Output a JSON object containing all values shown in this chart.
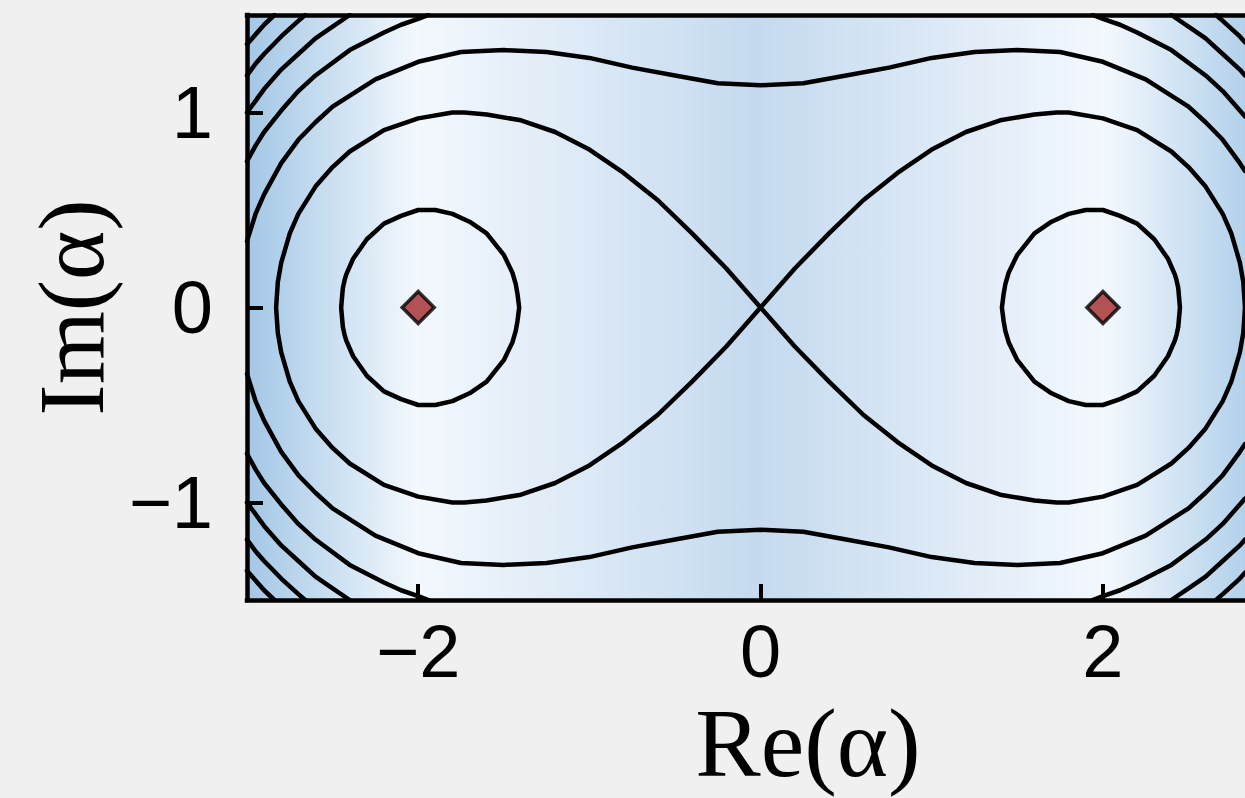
{
  "chart_data": {
    "type": "line",
    "xlabel": "Re(α)",
    "ylabel": "Im(α)",
    "xlim": [
      -3,
      2.83
    ],
    "ylim": [
      -1.5,
      1.5
    ],
    "xticks": [
      {
        "value": -2,
        "label": "−2"
      },
      0,
      2
    ],
    "yticks": [
      {
        "value": -1,
        "label": "−1"
      },
      0,
      1
    ],
    "marker": "none",
    "line_style": "solid",
    "series": [
      {
        "color": "#000000",
        "x": [
          -2.45,
          -2.44,
          -2.43,
          -2.42,
          -2.38,
          -2.3,
          -2.2,
          -2.1,
          -2.0,
          -1.9,
          -1.8,
          -1.7,
          -1.6,
          -1.5,
          -1.45,
          -1.43,
          -1.42,
          -1.41,
          -1.42,
          -1.43,
          -1.45,
          -1.5,
          -1.6,
          -1.7,
          -1.8,
          -1.9,
          -2.0,
          -2.1,
          -2.2,
          -2.3,
          -2.38,
          -2.42,
          -2.43,
          -2.44,
          -2.45,
          -2.44
        ],
        "values": [
          0,
          0.1,
          0.14,
          0.17,
          0.25,
          0.35,
          0.43,
          0.47,
          0.5,
          0.5,
          0.48,
          0.44,
          0.38,
          0.27,
          0.18,
          0.12,
          0.07,
          0,
          -0.07,
          -0.12,
          -0.18,
          -0.27,
          -0.38,
          -0.44,
          -0.48,
          -0.5,
          -0.5,
          -0.47,
          -0.43,
          -0.35,
          -0.25,
          -0.17,
          -0.14,
          -0.1,
          0,
          0.1
        ]
      },
      {
        "color": "#000000",
        "x": [
          2.45,
          2.44,
          2.43,
          2.42,
          2.38,
          2.3,
          2.2,
          2.1,
          2.0,
          1.9,
          1.8,
          1.7,
          1.6,
          1.5,
          1.45,
          1.43,
          1.42,
          1.41,
          1.42,
          1.43,
          1.45,
          1.5,
          1.6,
          1.7,
          1.8,
          1.9,
          2.0,
          2.1,
          2.2,
          2.3,
          2.38,
          2.42,
          2.43,
          2.44,
          2.45,
          2.44
        ],
        "values": [
          0,
          0.1,
          0.14,
          0.17,
          0.25,
          0.35,
          0.43,
          0.47,
          0.5,
          0.5,
          0.48,
          0.44,
          0.38,
          0.27,
          0.18,
          0.12,
          0.07,
          0,
          -0.07,
          -0.12,
          -0.18,
          -0.27,
          -0.38,
          -0.44,
          -0.48,
          -0.5,
          -0.5,
          -0.47,
          -0.43,
          -0.35,
          -0.25,
          -0.17,
          -0.14,
          -0.1,
          0,
          0.1
        ]
      },
      {
        "color": "#000000",
        "x": [
          0,
          0.1,
          0.2,
          0.4,
          0.6,
          0.8,
          1.0,
          1.2,
          1.4,
          1.6,
          1.73,
          1.8,
          2.0,
          2.2,
          2.4,
          2.5,
          2.6,
          2.7,
          2.75,
          2.8,
          2.82,
          2.83,
          2.82,
          2.8,
          2.75,
          2.7,
          2.6,
          2.5,
          2.4,
          2.2,
          2.0,
          1.8,
          1.73,
          1.6,
          1.4,
          1.2,
          1.0,
          0.8,
          0.6,
          0.4,
          0.2,
          0.1,
          0,
          -0.1,
          -0.2,
          -0.4,
          -0.6,
          -0.8,
          -1.0,
          -1.2,
          -1.4,
          -1.6,
          -1.73,
          -1.8,
          -2.0,
          -2.2,
          -2.4,
          -2.5,
          -2.6,
          -2.7,
          -2.75,
          -2.8,
          -2.82,
          -2.83,
          -2.82,
          -2.8,
          -2.75,
          -2.7,
          -2.6,
          -2.5,
          -2.4,
          -2.2,
          -2.0,
          -1.8,
          -1.73,
          -1.6,
          -1.4,
          -1.2,
          -1.0,
          -0.8,
          -0.6,
          -0.4,
          -0.2,
          -0.1,
          0,
          0.1
        ],
        "values": [
          0,
          0.1,
          0.2,
          0.38,
          0.55,
          0.69,
          0.81,
          0.9,
          0.96,
          0.99,
          1.0,
          1.0,
          0.97,
          0.91,
          0.8,
          0.72,
          0.62,
          0.48,
          0.38,
          0.23,
          0.13,
          0,
          -0.13,
          -0.23,
          -0.38,
          -0.48,
          -0.62,
          -0.72,
          -0.8,
          -0.91,
          -0.97,
          -1.0,
          -1.0,
          -0.99,
          -0.96,
          -0.9,
          -0.81,
          -0.69,
          -0.55,
          -0.38,
          -0.2,
          -0.1,
          0,
          0.1,
          0.2,
          0.38,
          0.55,
          0.69,
          0.81,
          0.9,
          0.96,
          0.99,
          1.0,
          1.0,
          0.97,
          0.91,
          0.8,
          0.72,
          0.62,
          0.48,
          0.38,
          0.23,
          0.13,
          0,
          -0.13,
          -0.23,
          -0.38,
          -0.48,
          -0.62,
          -0.72,
          -0.8,
          -0.91,
          -0.97,
          -1.0,
          -1.0,
          -0.99,
          -0.96,
          -0.9,
          -0.81,
          -0.69,
          -0.55,
          -0.38,
          -0.2,
          -0.1,
          0,
          0.1
        ]
      },
      {
        "color": "#000000",
        "x": [
          -3,
          -2.95,
          -2.9,
          -2.8,
          -2.7,
          -2.6,
          -2.5,
          -2.25,
          -2.0,
          -1.75,
          -1.5,
          -1.25,
          -1.0,
          -0.75,
          -0.5,
          -0.25,
          0,
          0.25,
          0.5,
          0.75,
          1.0,
          1.25,
          1.5,
          1.75,
          2.0,
          2.25,
          2.5,
          2.6,
          2.7,
          2.8,
          2.83
        ],
        "values": [
          0.34,
          0.48,
          0.58,
          0.74,
          0.86,
          0.95,
          1.03,
          1.17,
          1.26,
          1.31,
          1.32,
          1.31,
          1.28,
          1.23,
          1.19,
          1.15,
          1.14,
          1.15,
          1.19,
          1.23,
          1.28,
          1.31,
          1.32,
          1.31,
          1.26,
          1.17,
          1.03,
          0.95,
          0.86,
          0.74,
          0.7
        ]
      },
      {
        "color": "#000000",
        "x": [
          -3,
          -2.95,
          -2.9,
          -2.8,
          -2.7,
          -2.6,
          -2.5,
          -2.25,
          -2.0,
          -1.75,
          -1.5,
          -1.25,
          -1.0,
          -0.75,
          -0.5,
          -0.25,
          0,
          0.25,
          0.5,
          0.75,
          1.0,
          1.25,
          1.5,
          1.75,
          2.0,
          2.25,
          2.5,
          2.6,
          2.7,
          2.8,
          2.83
        ],
        "values": [
          -0.34,
          -0.48,
          -0.58,
          -0.74,
          -0.86,
          -0.95,
          -1.03,
          -1.17,
          -1.26,
          -1.31,
          -1.32,
          -1.31,
          -1.28,
          -1.23,
          -1.19,
          -1.15,
          -1.14,
          -1.15,
          -1.19,
          -1.23,
          -1.28,
          -1.31,
          -1.32,
          -1.31,
          -1.26,
          -1.17,
          -1.03,
          -0.95,
          -0.86,
          -0.74,
          -0.7
        ]
      },
      {
        "color": "#000000",
        "x": [
          -3,
          -2.95,
          -2.9,
          -2.8,
          -2.7,
          -2.6,
          -2.4,
          -2.2,
          -2.1,
          -2.0,
          -1.94
        ],
        "values": [
          0.75,
          0.83,
          0.9,
          1.01,
          1.11,
          1.19,
          1.32,
          1.41,
          1.45,
          1.48,
          1.5
        ]
      },
      {
        "color": "#000000",
        "x": [
          1.94,
          2.0,
          2.1,
          2.2,
          2.4,
          2.6,
          2.7,
          2.8,
          2.83
        ],
        "values": [
          1.5,
          1.48,
          1.45,
          1.41,
          1.32,
          1.19,
          1.11,
          1.01,
          0.98
        ]
      },
      {
        "color": "#000000",
        "x": [
          -3,
          -2.95,
          -2.9,
          -2.8,
          -2.7,
          -2.6,
          -2.4,
          -2.2,
          -2.1,
          -2.0,
          -1.94
        ],
        "values": [
          -0.75,
          -0.83,
          -0.9,
          -1.01,
          -1.11,
          -1.19,
          -1.32,
          -1.41,
          -1.45,
          -1.48,
          -1.5
        ]
      },
      {
        "color": "#000000",
        "x": [
          1.94,
          2.0,
          2.1,
          2.2,
          2.4,
          2.6,
          2.7,
          2.8,
          2.83
        ],
        "values": [
          -1.5,
          -1.48,
          -1.45,
          -1.41,
          -1.32,
          -1.19,
          -1.11,
          -1.01,
          -0.98
        ]
      },
      {
        "color": "#000000",
        "x": [
          -3,
          -2.95,
          -2.9,
          -2.8,
          -2.7,
          -2.6,
          -2.5,
          -2.4
        ],
        "values": [
          1.0,
          1.06,
          1.12,
          1.22,
          1.3,
          1.38,
          1.44,
          1.5
        ]
      },
      {
        "color": "#000000",
        "x": [
          2.4,
          2.5,
          2.6,
          2.7,
          2.8,
          2.83
        ],
        "values": [
          1.5,
          1.44,
          1.38,
          1.3,
          1.22,
          1.19
        ]
      },
      {
        "color": "#000000",
        "x": [
          -3,
          -2.95,
          -2.9,
          -2.8,
          -2.7,
          -2.6,
          -2.5,
          -2.4
        ],
        "values": [
          -1.0,
          -1.06,
          -1.12,
          -1.22,
          -1.3,
          -1.38,
          -1.44,
          -1.5
        ]
      },
      {
        "color": "#000000",
        "x": [
          2.4,
          2.5,
          2.6,
          2.7,
          2.8,
          2.83
        ],
        "values": [
          -1.5,
          -1.44,
          -1.38,
          -1.3,
          -1.22,
          -1.19
        ]
      },
      {
        "color": "#000000",
        "x": [
          -3,
          -2.95,
          -2.9,
          -2.8,
          -2.7,
          -2.66
        ],
        "values": [
          1.19,
          1.25,
          1.3,
          1.39,
          1.47,
          1.5
        ]
      },
      {
        "color": "#000000",
        "x": [
          2.66,
          2.7,
          2.8,
          2.83
        ],
        "values": [
          1.5,
          1.47,
          1.39,
          1.36
        ]
      },
      {
        "color": "#000000",
        "x": [
          -3,
          -2.95,
          -2.9,
          -2.8,
          -2.7,
          -2.66
        ],
        "values": [
          -1.19,
          -1.25,
          -1.3,
          -1.39,
          -1.47,
          -1.5
        ]
      },
      {
        "color": "#000000",
        "x": [
          2.66,
          2.7,
          2.8,
          2.83
        ],
        "values": [
          -1.5,
          -1.47,
          -1.39,
          -1.36
        ]
      },
      {
        "color": "#000000",
        "x": [
          -3,
          -2.95,
          -2.9,
          -2.84
        ],
        "values": [
          1.35,
          1.4,
          1.45,
          1.5
        ]
      },
      {
        "color": "#000000",
        "x": [
          -3,
          -2.95,
          -2.9,
          -2.84
        ],
        "values": [
          -1.35,
          -1.4,
          -1.45,
          -1.5
        ]
      },
      {
        "type": "scatter",
        "marker": "diamond",
        "color": "#a3282a",
        "x": [
          -2,
          2
        ],
        "values": [
          0,
          0
        ]
      }
    ]
  }
}
